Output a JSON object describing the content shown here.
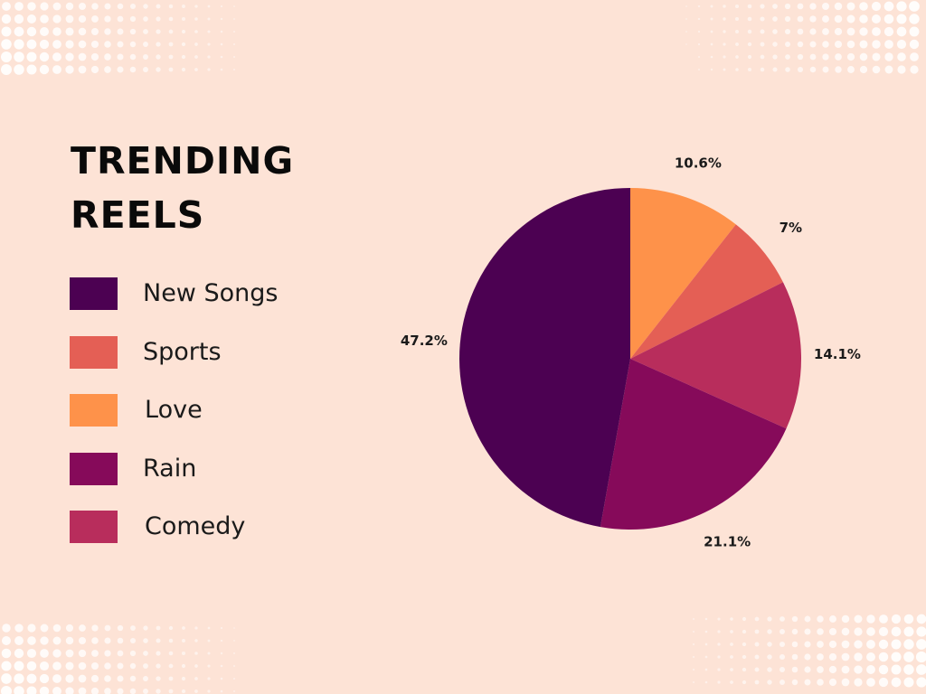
{
  "title_lines": [
    "TRENDING",
    "REELS"
  ],
  "chart_data": {
    "type": "pie",
    "title": "TRENDING REELS",
    "legend_position": "left",
    "slices": [
      {
        "label": "Love",
        "value": 10.6,
        "display": "10.6%",
        "color": "#fe924a"
      },
      {
        "label": "Sports",
        "value": 7.0,
        "display": "7%",
        "color": "#e45f55"
      },
      {
        "label": "Comedy",
        "value": 14.1,
        "display": "14.1%",
        "color": "#b82d5c"
      },
      {
        "label": "Rain",
        "value": 21.1,
        "display": "21.1%",
        "color": "#860a5a"
      },
      {
        "label": "New Songs",
        "value": 47.2,
        "display": "47.2%",
        "color": "#4c0152"
      }
    ],
    "legend": [
      {
        "label": "New Songs",
        "color": "#4c0152"
      },
      {
        "label": "Sports",
        "color": "#e45f55"
      },
      {
        "label": "Love",
        "color": "#fe924a"
      },
      {
        "label": "Rain",
        "color": "#860a5a"
      },
      {
        "label": "Comedy",
        "color": "#b82d5c"
      }
    ]
  }
}
